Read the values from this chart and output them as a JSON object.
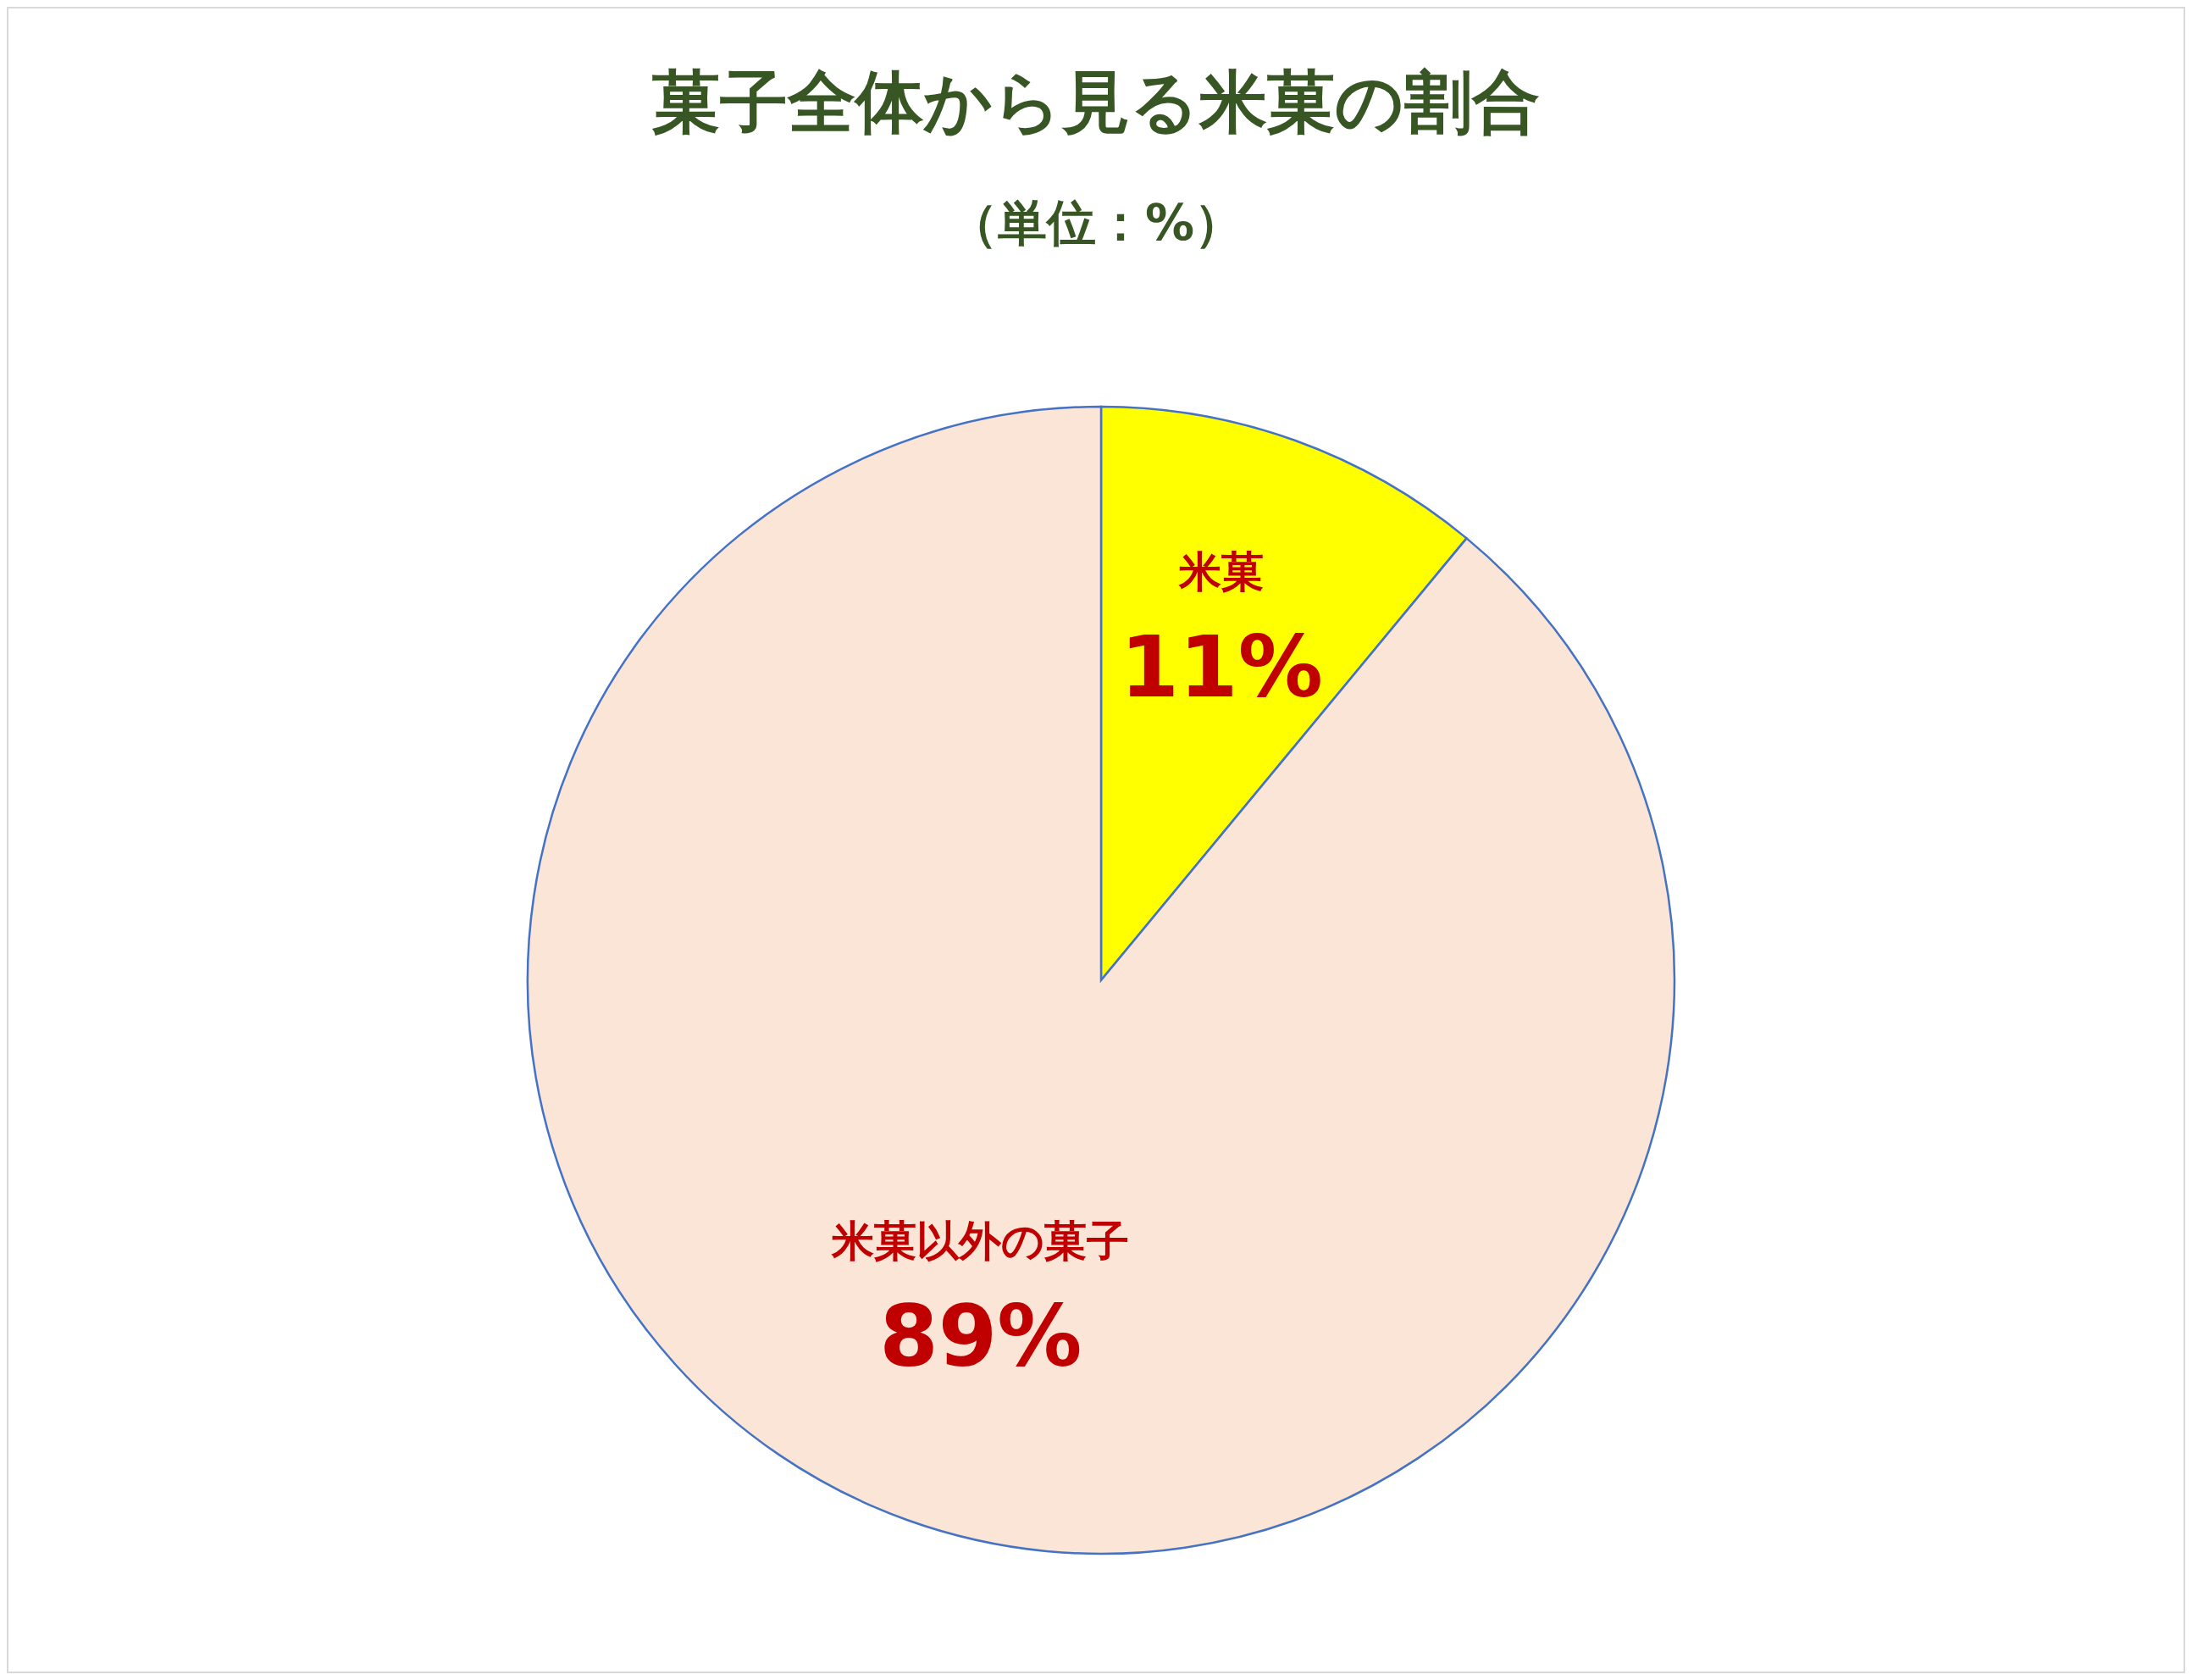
{
  "chart_data": {
    "type": "pie",
    "title": "菓子全体から見る米菓の割合",
    "subtitle": "（単位：%）",
    "categories": [
      "米菓",
      "米菓以外の菓子"
    ],
    "values": [
      11,
      89
    ],
    "value_labels": [
      "11%",
      "89%"
    ],
    "colors": [
      "#ffff00",
      "#fbe5d6"
    ]
  }
}
